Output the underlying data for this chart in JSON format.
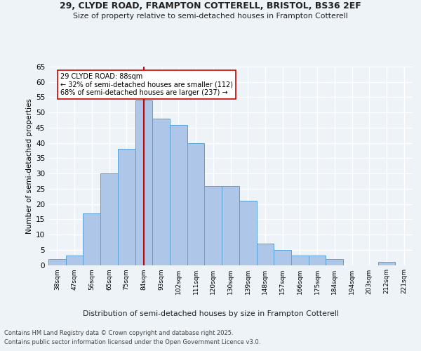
{
  "title1": "29, CLYDE ROAD, FRAMPTON COTTERELL, BRISTOL, BS36 2EF",
  "title2": "Size of property relative to semi-detached houses in Frampton Cotterell",
  "xlabel": "Distribution of semi-detached houses by size in Frampton Cotterell",
  "ylabel": "Number of semi-detached properties",
  "footer1": "Contains HM Land Registry data © Crown copyright and database right 2025.",
  "footer2": "Contains public sector information licensed under the Open Government Licence v3.0.",
  "bin_labels": [
    "38sqm",
    "47sqm",
    "56sqm",
    "65sqm",
    "75sqm",
    "84sqm",
    "93sqm",
    "102sqm",
    "111sqm",
    "120sqm",
    "130sqm",
    "139sqm",
    "148sqm",
    "157sqm",
    "166sqm",
    "175sqm",
    "184sqm",
    "194sqm",
    "203sqm",
    "212sqm",
    "221sqm"
  ],
  "bin_values": [
    2,
    3,
    17,
    30,
    38,
    54,
    48,
    46,
    40,
    26,
    26,
    21,
    7,
    5,
    3,
    3,
    2,
    0,
    0,
    1,
    0
  ],
  "bar_color": "#aec6e8",
  "bar_edge_color": "#5a9fd4",
  "annotation_title": "29 CLYDE ROAD: 88sqm",
  "annotation_line1": "← 32% of semi-detached houses are smaller (112)",
  "annotation_line2": "68% of semi-detached houses are larger (237) →",
  "vline_color": "#cc0000",
  "vline_x": 5,
  "ylim": [
    0,
    65
  ],
  "yticks": [
    0,
    5,
    10,
    15,
    20,
    25,
    30,
    35,
    40,
    45,
    50,
    55,
    60,
    65
  ],
  "bg_color": "#eef3f8",
  "plot_bg_color": "#eef3f8",
  "grid_color": "#ffffff"
}
